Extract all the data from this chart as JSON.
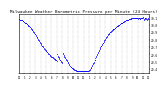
{
  "title": "Milwaukee Weather Barometric Pressure per Minute (24 Hours)",
  "title_fontsize": 3.0,
  "background_color": "#ffffff",
  "dot_color": "#0000ff",
  "dot_size": 0.3,
  "ylim": [
    29.35,
    30.15
  ],
  "xlim": [
    0,
    1440
  ],
  "yticks": [
    29.4,
    29.5,
    29.6,
    29.7,
    29.8,
    29.9,
    30.0,
    30.1
  ],
  "ytick_labels": [
    "29.4",
    "29.5",
    "29.6",
    "29.7",
    "29.8",
    "29.9",
    "30.0",
    "30.1"
  ],
  "xticks": [
    0,
    60,
    120,
    180,
    240,
    300,
    360,
    420,
    480,
    540,
    600,
    660,
    720,
    780,
    840,
    900,
    960,
    1020,
    1080,
    1140,
    1200,
    1260,
    1320,
    1380,
    1440
  ],
  "xtick_labels": [
    "12",
    "1",
    "2",
    "3",
    "4",
    "5",
    "6",
    "7",
    "8",
    "9",
    "10",
    "11",
    "12",
    "1",
    "2",
    "3",
    "4",
    "5",
    "6",
    "7",
    "8",
    "9",
    "10",
    "11",
    "12"
  ],
  "grid_color": "#aaaaaa",
  "grid_style": "--",
  "pressure_data": [
    [
      0,
      30.08
    ],
    [
      5,
      30.08
    ],
    [
      10,
      30.07
    ],
    [
      15,
      30.07
    ],
    [
      20,
      30.07
    ],
    [
      25,
      30.06
    ],
    [
      30,
      30.06
    ],
    [
      35,
      30.06
    ],
    [
      40,
      30.05
    ],
    [
      45,
      30.05
    ],
    [
      50,
      30.05
    ],
    [
      55,
      30.04
    ],
    [
      60,
      30.04
    ],
    [
      65,
      30.03
    ],
    [
      70,
      30.03
    ],
    [
      75,
      30.02
    ],
    [
      80,
      30.02
    ],
    [
      85,
      30.01
    ],
    [
      90,
      30.01
    ],
    [
      95,
      30.0
    ],
    [
      100,
      30.0
    ],
    [
      105,
      29.99
    ],
    [
      110,
      29.99
    ],
    [
      115,
      29.98
    ],
    [
      120,
      29.97
    ],
    [
      125,
      29.97
    ],
    [
      130,
      29.96
    ],
    [
      135,
      29.95
    ],
    [
      140,
      29.94
    ],
    [
      145,
      29.93
    ],
    [
      150,
      29.93
    ],
    [
      155,
      29.92
    ],
    [
      160,
      29.91
    ],
    [
      165,
      29.9
    ],
    [
      170,
      29.89
    ],
    [
      175,
      29.88
    ],
    [
      180,
      29.87
    ],
    [
      185,
      29.86
    ],
    [
      190,
      29.85
    ],
    [
      195,
      29.84
    ],
    [
      200,
      29.83
    ],
    [
      205,
      29.82
    ],
    [
      210,
      29.81
    ],
    [
      215,
      29.8
    ],
    [
      220,
      29.79
    ],
    [
      225,
      29.78
    ],
    [
      230,
      29.77
    ],
    [
      235,
      29.76
    ],
    [
      240,
      29.75
    ],
    [
      245,
      29.74
    ],
    [
      250,
      29.73
    ],
    [
      255,
      29.72
    ],
    [
      260,
      29.72
    ],
    [
      265,
      29.71
    ],
    [
      270,
      29.7
    ],
    [
      275,
      29.69
    ],
    [
      280,
      29.68
    ],
    [
      285,
      29.67
    ],
    [
      290,
      29.66
    ],
    [
      295,
      29.66
    ],
    [
      300,
      29.65
    ],
    [
      305,
      29.64
    ],
    [
      310,
      29.63
    ],
    [
      315,
      29.63
    ],
    [
      320,
      29.62
    ],
    [
      325,
      29.61
    ],
    [
      330,
      29.6
    ],
    [
      335,
      29.6
    ],
    [
      340,
      29.59
    ],
    [
      345,
      29.59
    ],
    [
      350,
      29.58
    ],
    [
      355,
      29.58
    ],
    [
      360,
      29.57
    ],
    [
      365,
      29.57
    ],
    [
      370,
      29.56
    ],
    [
      375,
      29.56
    ],
    [
      380,
      29.55
    ],
    [
      385,
      29.55
    ],
    [
      390,
      29.54
    ],
    [
      395,
      29.54
    ],
    [
      400,
      29.54
    ],
    [
      405,
      29.53
    ],
    [
      410,
      29.52
    ],
    [
      415,
      29.52
    ],
    [
      420,
      29.51
    ],
    [
      425,
      29.61
    ],
    [
      430,
      29.58
    ],
    [
      435,
      29.57
    ],
    [
      440,
      29.56
    ],
    [
      445,
      29.55
    ],
    [
      450,
      29.54
    ],
    [
      455,
      29.53
    ],
    [
      460,
      29.52
    ],
    [
      465,
      29.51
    ],
    [
      470,
      29.5
    ],
    [
      475,
      29.5
    ],
    [
      480,
      29.49
    ],
    [
      485,
      29.62
    ],
    [
      490,
      29.6
    ],
    [
      495,
      29.59
    ],
    [
      500,
      29.58
    ],
    [
      505,
      29.57
    ],
    [
      510,
      29.56
    ],
    [
      515,
      29.55
    ],
    [
      520,
      29.54
    ],
    [
      525,
      29.53
    ],
    [
      530,
      29.52
    ],
    [
      535,
      29.51
    ],
    [
      540,
      29.5
    ],
    [
      545,
      29.49
    ],
    [
      550,
      29.48
    ],
    [
      555,
      29.47
    ],
    [
      560,
      29.46
    ],
    [
      565,
      29.45
    ],
    [
      570,
      29.44
    ],
    [
      575,
      29.43
    ],
    [
      580,
      29.43
    ],
    [
      585,
      29.42
    ],
    [
      590,
      29.41
    ],
    [
      595,
      29.41
    ],
    [
      600,
      29.4
    ],
    [
      605,
      29.4
    ],
    [
      610,
      29.4
    ],
    [
      615,
      29.39
    ],
    [
      620,
      29.39
    ],
    [
      625,
      29.39
    ],
    [
      630,
      29.39
    ],
    [
      635,
      29.38
    ],
    [
      640,
      29.38
    ],
    [
      645,
      29.38
    ],
    [
      650,
      29.37
    ],
    [
      655,
      29.37
    ],
    [
      660,
      29.37
    ],
    [
      665,
      29.37
    ],
    [
      670,
      29.37
    ],
    [
      675,
      29.37
    ],
    [
      680,
      29.37
    ],
    [
      685,
      29.37
    ],
    [
      690,
      29.37
    ],
    [
      695,
      29.37
    ],
    [
      700,
      29.37
    ],
    [
      705,
      29.37
    ],
    [
      710,
      29.37
    ],
    [
      715,
      29.37
    ],
    [
      720,
      29.37
    ],
    [
      725,
      29.37
    ],
    [
      730,
      29.37
    ],
    [
      735,
      29.37
    ],
    [
      740,
      29.37
    ],
    [
      745,
      29.37
    ],
    [
      750,
      29.37
    ],
    [
      755,
      29.37
    ],
    [
      760,
      29.37
    ],
    [
      765,
      29.38
    ],
    [
      770,
      29.38
    ],
    [
      775,
      29.38
    ],
    [
      780,
      29.39
    ],
    [
      785,
      29.39
    ],
    [
      790,
      29.4
    ],
    [
      795,
      29.41
    ],
    [
      800,
      29.42
    ],
    [
      805,
      29.43
    ],
    [
      810,
      29.44
    ],
    [
      815,
      29.46
    ],
    [
      820,
      29.47
    ],
    [
      825,
      29.48
    ],
    [
      830,
      29.49
    ],
    [
      835,
      29.5
    ],
    [
      840,
      29.52
    ],
    [
      845,
      29.53
    ],
    [
      850,
      29.55
    ],
    [
      855,
      29.56
    ],
    [
      860,
      29.58
    ],
    [
      865,
      29.59
    ],
    [
      870,
      29.61
    ],
    [
      875,
      29.62
    ],
    [
      880,
      29.63
    ],
    [
      885,
      29.65
    ],
    [
      890,
      29.66
    ],
    [
      895,
      29.68
    ],
    [
      900,
      29.69
    ],
    [
      905,
      29.7
    ],
    [
      910,
      29.71
    ],
    [
      915,
      29.72
    ],
    [
      920,
      29.73
    ],
    [
      925,
      29.74
    ],
    [
      930,
      29.75
    ],
    [
      935,
      29.76
    ],
    [
      940,
      29.77
    ],
    [
      945,
      29.78
    ],
    [
      950,
      29.79
    ],
    [
      955,
      29.8
    ],
    [
      960,
      29.81
    ],
    [
      965,
      29.82
    ],
    [
      970,
      29.83
    ],
    [
      975,
      29.84
    ],
    [
      980,
      29.85
    ],
    [
      985,
      29.86
    ],
    [
      990,
      29.87
    ],
    [
      995,
      29.87
    ],
    [
      1000,
      29.88
    ],
    [
      1005,
      29.89
    ],
    [
      1010,
      29.9
    ],
    [
      1015,
      29.9
    ],
    [
      1020,
      29.91
    ],
    [
      1025,
      29.92
    ],
    [
      1030,
      29.92
    ],
    [
      1035,
      29.93
    ],
    [
      1040,
      29.93
    ],
    [
      1045,
      29.94
    ],
    [
      1050,
      29.94
    ],
    [
      1055,
      29.95
    ],
    [
      1060,
      29.95
    ],
    [
      1065,
      29.96
    ],
    [
      1070,
      29.96
    ],
    [
      1075,
      29.97
    ],
    [
      1080,
      29.97
    ],
    [
      1085,
      29.98
    ],
    [
      1090,
      29.98
    ],
    [
      1095,
      29.99
    ],
    [
      1100,
      29.99
    ],
    [
      1105,
      30.0
    ],
    [
      1110,
      30.0
    ],
    [
      1115,
      30.0
    ],
    [
      1120,
      30.01
    ],
    [
      1125,
      30.01
    ],
    [
      1130,
      30.02
    ],
    [
      1135,
      30.02
    ],
    [
      1140,
      30.02
    ],
    [
      1145,
      30.03
    ],
    [
      1150,
      30.03
    ],
    [
      1155,
      30.04
    ],
    [
      1160,
      30.04
    ],
    [
      1165,
      30.04
    ],
    [
      1170,
      30.05
    ],
    [
      1175,
      30.05
    ],
    [
      1180,
      30.05
    ],
    [
      1185,
      30.06
    ],
    [
      1190,
      30.06
    ],
    [
      1195,
      30.06
    ],
    [
      1200,
      30.07
    ],
    [
      1205,
      30.07
    ],
    [
      1210,
      30.07
    ],
    [
      1215,
      30.07
    ],
    [
      1220,
      30.08
    ],
    [
      1225,
      30.08
    ],
    [
      1230,
      30.08
    ],
    [
      1235,
      30.08
    ],
    [
      1240,
      30.08
    ],
    [
      1245,
      30.08
    ],
    [
      1250,
      30.09
    ],
    [
      1255,
      30.09
    ],
    [
      1260,
      30.09
    ],
    [
      1265,
      30.09
    ],
    [
      1270,
      30.09
    ],
    [
      1275,
      30.09
    ],
    [
      1280,
      30.09
    ],
    [
      1285,
      30.09
    ],
    [
      1290,
      30.09
    ],
    [
      1295,
      30.09
    ],
    [
      1300,
      30.09
    ],
    [
      1305,
      30.09
    ],
    [
      1310,
      30.09
    ],
    [
      1315,
      30.09
    ],
    [
      1320,
      30.09
    ],
    [
      1325,
      30.08
    ],
    [
      1330,
      30.09
    ],
    [
      1335,
      30.09
    ],
    [
      1340,
      30.09
    ],
    [
      1345,
      30.08
    ],
    [
      1350,
      30.08
    ],
    [
      1355,
      30.09
    ],
    [
      1360,
      30.09
    ],
    [
      1365,
      30.09
    ],
    [
      1370,
      30.09
    ],
    [
      1375,
      30.1
    ],
    [
      1380,
      30.09
    ],
    [
      1385,
      30.07
    ],
    [
      1390,
      30.08
    ],
    [
      1395,
      30.09
    ],
    [
      1400,
      30.09
    ],
    [
      1405,
      30.08
    ],
    [
      1410,
      30.09
    ],
    [
      1415,
      30.08
    ],
    [
      1420,
      30.07
    ],
    [
      1425,
      30.08
    ],
    [
      1430,
      30.09
    ],
    [
      1435,
      30.08
    ],
    [
      1440,
      30.08
    ]
  ]
}
